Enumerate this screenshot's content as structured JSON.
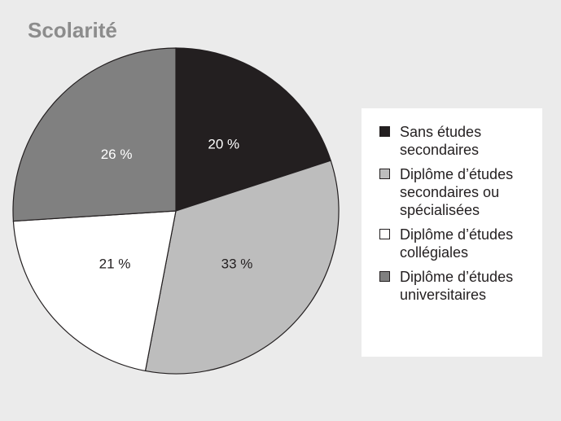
{
  "chart_data": {
    "type": "pie",
    "title": "Scolarité",
    "categories": [
      "Sans études secondaires",
      "Diplôme d’études secondaires ou spécialisées",
      "Diplôme d’études collégiales",
      "Diplôme d’études universitaires"
    ],
    "values": [
      20,
      33,
      21,
      26
    ],
    "value_labels": [
      "20 %",
      "33 %",
      "21 %",
      "26 %"
    ],
    "colors": [
      "#231f20",
      "#bdbdbd",
      "#ffffff",
      "#808080"
    ],
    "label_colors": [
      "#ffffff",
      "#231f20",
      "#231f20",
      "#ffffff"
    ],
    "legend": "right"
  }
}
